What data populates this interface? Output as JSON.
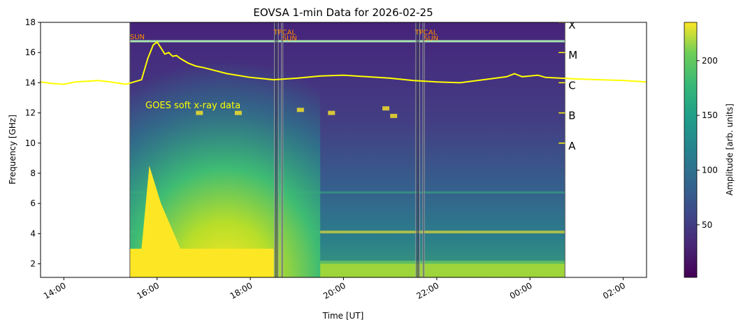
{
  "chart_data": [
    {
      "type": "heatmap",
      "title": "EOVSA 1-min Data for 2026-02-25",
      "xlabel": "Time [UT]",
      "ylabel": "Frequency [GHz]",
      "x_ticks": [
        "14:00",
        "16:00",
        "18:00",
        "20:00",
        "22:00",
        "00:00",
        "02:00"
      ],
      "x_range": [
        "13:30",
        "02:30"
      ],
      "y_ticks": [
        2,
        4,
        6,
        8,
        10,
        12,
        14,
        16,
        18
      ],
      "ylim": [
        1.1,
        18.0
      ],
      "data_time_range": [
        "15:25",
        "00:45"
      ],
      "colormap": "viridis",
      "colorbar": {
        "label": "Amplitude [arb. units]",
        "range": [
          2,
          235
        ],
        "ticks": [
          50,
          100,
          150,
          200
        ]
      },
      "annotations": [
        {
          "text": "SUN",
          "time": "15:25",
          "freq": 16.9,
          "color": "#ff8c00"
        },
        {
          "text": "TPCAL",
          "time": "18:30",
          "freq": 17.2,
          "color": "#ff8c00"
        },
        {
          "text": "SUN",
          "time": "18:41",
          "freq": 16.8,
          "color": "#ff8c00"
        },
        {
          "text": "TPCAL",
          "time": "21:32",
          "freq": 17.2,
          "color": "#ff8c00"
        },
        {
          "text": "SUN",
          "time": "21:43",
          "freq": 16.8,
          "color": "#ff8c00"
        },
        {
          "text": "GOES soft x-ray data",
          "time": "15:45",
          "freq": 12.5,
          "color": "#ffff00"
        }
      ],
      "scan_markers": [
        {
          "start": "18:31",
          "end": "18:36"
        },
        {
          "start": "18:40",
          "end": "18:42"
        },
        {
          "start": "21:33",
          "end": "21:38"
        },
        {
          "start": "21:42",
          "end": "21:44"
        }
      ],
      "goes_flare_classes": [
        "A",
        "B",
        "C",
        "M",
        "X"
      ],
      "goes_class_freq": [
        10,
        12,
        14,
        16,
        18
      ]
    },
    {
      "type": "line",
      "name": "GOES soft x-ray data",
      "color": "#ffff00",
      "x": [
        "13:30",
        "13:45",
        "14:00",
        "14:15",
        "14:30",
        "14:45",
        "15:00",
        "15:20",
        "15:40",
        "15:48",
        "15:55",
        "16:00",
        "16:05",
        "16:10",
        "16:15",
        "16:20",
        "16:25",
        "16:30",
        "16:40",
        "16:50",
        "17:00",
        "17:30",
        "18:00",
        "18:30",
        "19:00",
        "19:30",
        "20:00",
        "20:30",
        "21:00",
        "21:30",
        "22:00",
        "22:30",
        "23:00",
        "23:30",
        "23:40",
        "23:50",
        "00:00",
        "00:10",
        "00:20",
        "00:40",
        "01:00",
        "01:30",
        "02:00",
        "02:30"
      ],
      "y": [
        14.05,
        13.95,
        13.9,
        14.05,
        14.1,
        14.15,
        14.05,
        13.9,
        14.2,
        15.6,
        16.5,
        16.7,
        16.3,
        15.9,
        16.0,
        15.75,
        15.8,
        15.6,
        15.3,
        15.1,
        15.0,
        14.6,
        14.35,
        14.2,
        14.3,
        14.45,
        14.5,
        14.4,
        14.3,
        14.15,
        14.05,
        14.0,
        14.2,
        14.4,
        14.6,
        14.4,
        14.45,
        14.5,
        14.35,
        14.3,
        14.25,
        14.2,
        14.15,
        14.05
      ]
    }
  ]
}
